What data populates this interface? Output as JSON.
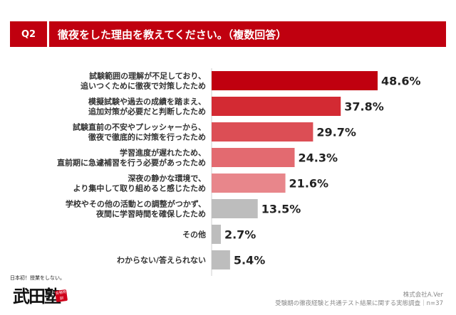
{
  "header": {
    "question_no": "Q2",
    "title": "徹夜をした理由を教えてください。（複数回答）"
  },
  "chart_data": {
    "type": "bar",
    "orientation": "horizontal",
    "title": "徹夜をした理由を教えてください。（複数回答）",
    "unit": "%",
    "xlim": [
      0,
      60
    ],
    "categories": [
      [
        "試験範囲の理解が不足しており、",
        "追いつくために徹夜で対策したため"
      ],
      [
        "模擬試験や過去の成績を踏まえ、",
        "追加対策が必要だと判断したため"
      ],
      [
        "試験直前の不安やプレッシャーから、",
        "徹夜で徹底的に対策を行ったため"
      ],
      [
        "学習進度が遅れたため、",
        "直前期に急遽補習を行う必要があったため"
      ],
      [
        "深夜の静かな環境で、",
        "より集中して取り組めると感じたため"
      ],
      [
        "学校やその他の活動との調整がつかず、",
        "夜間に学習時間を確保したため"
      ],
      [
        "その他"
      ],
      [
        "わからない/答えられない"
      ]
    ],
    "values": [
      48.6,
      37.8,
      29.7,
      24.3,
      21.6,
      13.5,
      2.7,
      5.4
    ],
    "value_labels": [
      "48.6%",
      "37.8%",
      "29.7%",
      "24.3%",
      "21.6%",
      "13.5%",
      "2.7%",
      "5.4%"
    ],
    "colors": [
      "#c0000f",
      "#d32a33",
      "#dc4e55",
      "#e36a70",
      "#e8868b",
      "#bdbdbd",
      "#bdbdbd",
      "#bdbdbd"
    ]
  },
  "footer": {
    "company": "株式会社A.Ver",
    "survey": "受験期の徹夜経験と共通テスト結果に関する実態調査｜n=37"
  },
  "logo": {
    "tagline": "日本初！授業をしない。",
    "name": "武田塾",
    "stamp": "合格特訓"
  }
}
